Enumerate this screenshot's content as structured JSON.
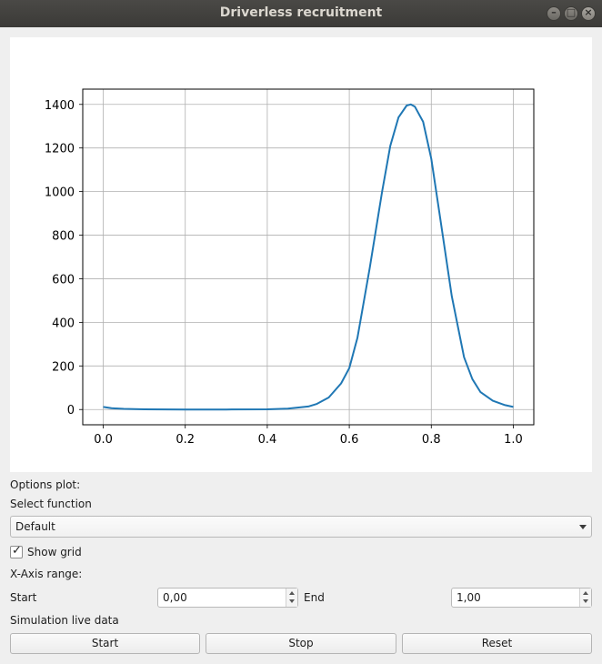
{
  "window": {
    "title": "Driverless recruitment"
  },
  "options": {
    "heading": "Options plot:",
    "select_label": "Select function",
    "select_value": "Default",
    "show_grid_label": "Show grid",
    "show_grid_checked": true,
    "xaxis_label": "X-Axis range:",
    "start_label": "Start",
    "start_value": "0,00",
    "end_label": "End",
    "end_value": "1,00",
    "sim_label": "Simulation live data"
  },
  "buttons": {
    "start": "Start",
    "stop": "Stop",
    "reset": "Reset"
  },
  "colors": {
    "line": "#1f77b4",
    "grid": "#b0b0b0"
  },
  "chart_data": {
    "type": "line",
    "title": "",
    "xlabel": "",
    "ylabel": "",
    "xlim": [
      -0.05,
      1.05
    ],
    "ylim": [
      -70,
      1470
    ],
    "xticks": [
      "0.0",
      "0.2",
      "0.4",
      "0.6",
      "0.8",
      "1.0"
    ],
    "yticks": [
      "0",
      "200",
      "400",
      "600",
      "800",
      "1000",
      "1200",
      "1400"
    ],
    "grid": true,
    "series": [
      {
        "x": [
          0.0,
          0.02,
          0.05,
          0.1,
          0.2,
          0.3,
          0.4,
          0.45,
          0.5,
          0.52,
          0.55,
          0.58,
          0.6,
          0.62,
          0.65,
          0.68,
          0.7,
          0.72,
          0.74,
          0.75,
          0.76,
          0.78,
          0.8,
          0.82,
          0.85,
          0.88,
          0.9,
          0.92,
          0.95,
          0.98,
          1.0
        ],
        "y": [
          12,
          6,
          3,
          1,
          0,
          0,
          1,
          4,
          14,
          25,
          55,
          120,
          190,
          330,
          650,
          1000,
          1210,
          1340,
          1395,
          1400,
          1390,
          1320,
          1150,
          900,
          520,
          240,
          140,
          80,
          40,
          20,
          12
        ]
      }
    ]
  }
}
